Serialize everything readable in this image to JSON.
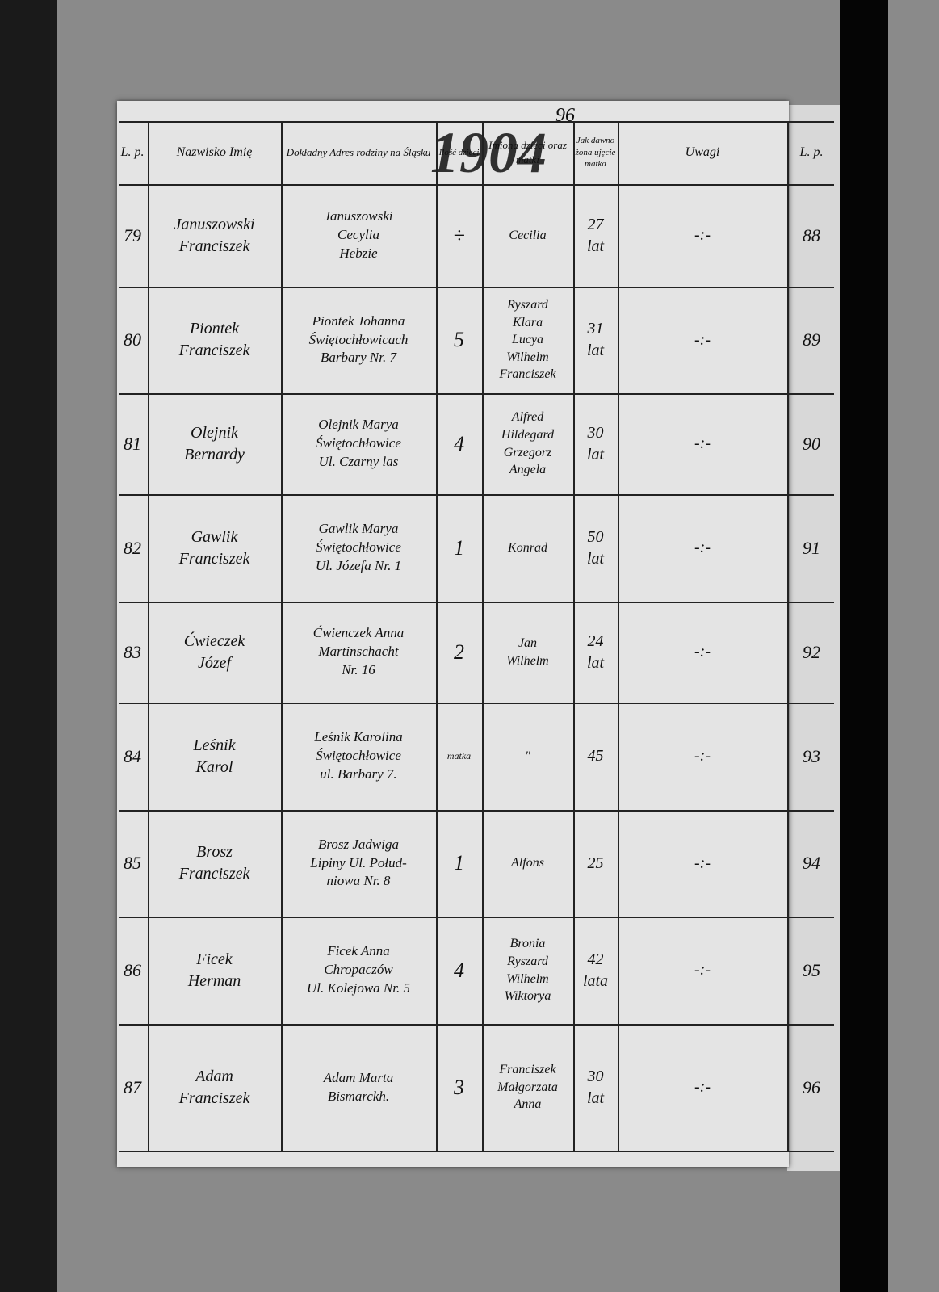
{
  "header": {
    "page_number": "96",
    "year": "1904"
  },
  "table": {
    "columns": [
      "L. p.",
      "Nazwisko Imię",
      "Dokładny Adres rodziny na Śląsku",
      "Ilość dzieci",
      "Imiona dzieci oraz matki",
      "Jak dawno żona ujęcie matka",
      "Uwagi",
      "L. p."
    ],
    "rows": [
      [
        "79",
        "Januszowski\nFranciszek",
        "Januszowski\nCecylia\nHebzie",
        "÷",
        "Cecilia",
        "27\nlat",
        "-:-",
        "88"
      ],
      [
        "80",
        "Piontek\nFranciszek",
        "Piontek Johanna\nŚwiętochłowicach\nBarbary Nr. 7",
        "5",
        "Ryszard\nKlara\nLucya\nWilhelm\nFranciszek",
        "31\nlat",
        "-:-",
        "89"
      ],
      [
        "81",
        "Olejnik\nBernardy",
        "Olejnik Marya\nŚwiętochłowice\nUl. Czarny las",
        "4",
        "Alfred\nHildegard\nGrzegorz\nAngela",
        "30\nlat",
        "-:-",
        "90"
      ],
      [
        "82",
        "Gawlik\nFranciszek",
        "Gawlik Marya\nŚwiętochłowice\nUl. Józefa Nr. 1",
        "1",
        "Konrad",
        "50\nlat",
        "-:-",
        "91"
      ],
      [
        "83",
        "Ćwieczek\nJózef",
        "Ćwienczek Anna\nMartinschacht\nNr. 16",
        "2",
        "Jan\nWilhelm",
        "24\nlat",
        "-:-",
        "92"
      ],
      [
        "84",
        "Leśnik\nKarol",
        "Leśnik Karolina\nŚwiętochłowice\nul. Barbary 7.",
        "matka",
        "\"",
        "45",
        "-:-",
        "93"
      ],
      [
        "85",
        "Brosz\nFranciszek",
        "Brosz Jadwiga\nLipiny Ul. Połud-\nniowa Nr. 8",
        "1",
        "Alfons",
        "25",
        "-:-",
        "94"
      ],
      [
        "86",
        "Ficek\nHerman",
        "Ficek Anna\nChropaczów\nUl. Kolejowa Nr. 5",
        "4",
        "Bronia\nRyszard\nWilhelm\nWiktorya",
        "42\nlata",
        "-:-",
        "95"
      ],
      [
        "87",
        "Adam\nFranciszek",
        "Adam Marta\nBismarckh.",
        "3",
        "Franciszek\nMałgorzata\nAnna",
        "30\nlat",
        "-:-",
        "96"
      ]
    ]
  }
}
